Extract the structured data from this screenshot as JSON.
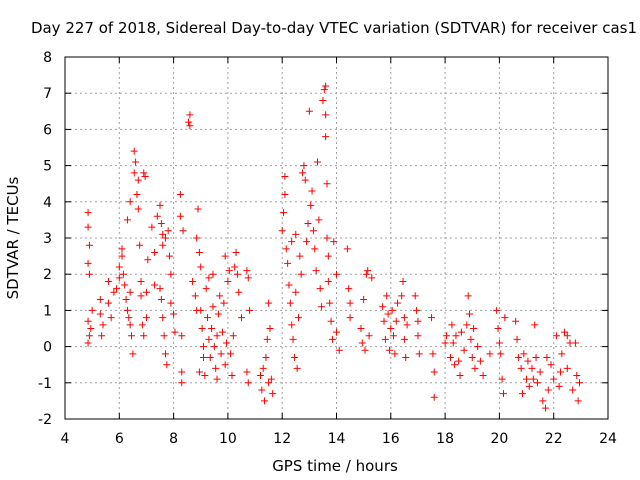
{
  "chart_data": {
    "type": "scatter",
    "title": "Day 227 of 2018, Sidereal Day-to-day VTEC variation (SDTVAR) for receiver cas1",
    "xlabel": "GPS time / hours",
    "ylabel": "SDTVAR / TECUs",
    "xlim": [
      4,
      24
    ],
    "ylim": [
      -2,
      8
    ],
    "x_ticks": [
      4,
      6,
      8,
      10,
      12,
      14,
      16,
      18,
      20,
      22,
      24
    ],
    "y_ticks": [
      -2,
      -1,
      0,
      1,
      2,
      3,
      4,
      5,
      6,
      7,
      8
    ],
    "grid": true,
    "marker": "plus",
    "marker_color": "#ff0000",
    "series": [
      {
        "name": "SDTVAR",
        "points": [
          [
            4.85,
            3.7
          ],
          [
            4.85,
            3.3
          ],
          [
            4.9,
            2.8
          ],
          [
            4.85,
            2.3
          ],
          [
            4.9,
            2.0
          ],
          [
            4.85,
            0.7
          ],
          [
            4.9,
            0.3
          ],
          [
            4.85,
            0.1
          ],
          [
            4.95,
            0.5
          ],
          [
            5.0,
            1.0
          ],
          [
            5.3,
            1.3
          ],
          [
            5.3,
            0.9
          ],
          [
            5.4,
            0.6
          ],
          [
            5.35,
            0.3
          ],
          [
            5.6,
            1.8
          ],
          [
            5.6,
            1.2
          ],
          [
            5.7,
            0.8
          ],
          [
            5.8,
            1.5
          ],
          [
            5.9,
            1.6
          ],
          [
            6.0,
            2.2
          ],
          [
            6.0,
            1.9
          ],
          [
            6.1,
            2.5
          ],
          [
            6.1,
            2.7
          ],
          [
            6.15,
            2.0
          ],
          [
            6.2,
            1.7
          ],
          [
            6.3,
            3.5
          ],
          [
            6.4,
            4.0
          ],
          [
            6.4,
            1.5
          ],
          [
            6.3,
            1.0
          ],
          [
            6.35,
            0.8
          ],
          [
            6.4,
            0.6
          ],
          [
            6.45,
            0.3
          ],
          [
            6.5,
            -0.2
          ],
          [
            6.55,
            5.4
          ],
          [
            6.6,
            5.1
          ],
          [
            6.55,
            4.8
          ],
          [
            6.65,
            4.2
          ],
          [
            6.7,
            4.6
          ],
          [
            6.7,
            3.8
          ],
          [
            6.75,
            2.8
          ],
          [
            6.8,
            1.8
          ],
          [
            6.8,
            1.4
          ],
          [
            6.85,
            0.6
          ],
          [
            6.9,
            0.3
          ],
          [
            6.9,
            4.8
          ],
          [
            6.95,
            4.7
          ],
          [
            7.0,
            1.5
          ],
          [
            7.0,
            0.8
          ],
          [
            7.2,
            3.3
          ],
          [
            7.3,
            2.6
          ],
          [
            7.3,
            1.7
          ],
          [
            7.4,
            3.6
          ],
          [
            7.5,
            3.9
          ],
          [
            7.55,
            3.4
          ],
          [
            7.6,
            3.1
          ],
          [
            7.6,
            2.8
          ],
          [
            7.5,
            1.6
          ],
          [
            7.55,
            1.3
          ],
          [
            7.6,
            0.8
          ],
          [
            7.65,
            0.3
          ],
          [
            7.7,
            -0.2
          ],
          [
            7.75,
            -0.5
          ],
          [
            7.7,
            3.0
          ],
          [
            7.8,
            3.2
          ],
          [
            7.85,
            2.5
          ],
          [
            7.9,
            2.0
          ],
          [
            7.9,
            1.2
          ],
          [
            8.0,
            0.9
          ],
          [
            8.05,
            0.4
          ],
          [
            8.25,
            4.2
          ],
          [
            8.25,
            3.6
          ],
          [
            8.35,
            3.2
          ],
          [
            8.3,
            0.3
          ],
          [
            8.3,
            -0.7
          ],
          [
            8.3,
            -1.0
          ],
          [
            8.55,
            6.2
          ],
          [
            8.6,
            6.1
          ],
          [
            8.6,
            6.4
          ],
          [
            8.7,
            1.8
          ],
          [
            8.8,
            1.4
          ],
          [
            8.85,
            1.0
          ],
          [
            8.85,
            3.0
          ],
          [
            8.9,
            3.8
          ],
          [
            8.95,
            2.6
          ],
          [
            9.0,
            2.2
          ],
          [
            9.0,
            1.0
          ],
          [
            9.05,
            0.5
          ],
          [
            9.1,
            0.0
          ],
          [
            9.1,
            -0.3
          ],
          [
            9.15,
            -0.8
          ],
          [
            9.2,
            1.6
          ],
          [
            9.25,
            0.8
          ],
          [
            9.3,
            0.2
          ],
          [
            9.35,
            -0.3
          ],
          [
            9.4,
            0.5
          ],
          [
            9.45,
            1.1
          ],
          [
            9.5,
            0.0
          ],
          [
            9.55,
            -0.6
          ],
          [
            9.6,
            0.3
          ],
          [
            9.65,
            0.9
          ],
          [
            9.7,
            1.4
          ],
          [
            9.75,
            -0.2
          ],
          [
            9.8,
            0.4
          ],
          [
            9.85,
            1.2
          ],
          [
            9.9,
            -0.5
          ],
          [
            9.95,
            0.1
          ],
          [
            10.0,
            1.8
          ],
          [
            10.05,
            2.1
          ],
          [
            10.1,
            -0.2
          ],
          [
            10.15,
            -0.8
          ],
          [
            10.2,
            0.3
          ],
          [
            10.25,
            2.2
          ],
          [
            10.3,
            2.6
          ],
          [
            10.35,
            2.0
          ],
          [
            10.4,
            1.5
          ],
          [
            10.5,
            0.8
          ],
          [
            10.7,
            2.1
          ],
          [
            10.75,
            1.9
          ],
          [
            10.7,
            -0.7
          ],
          [
            10.75,
            -1.0
          ],
          [
            10.8,
            1.0
          ],
          [
            11.2,
            -0.8
          ],
          [
            11.25,
            -1.2
          ],
          [
            11.3,
            -0.6
          ],
          [
            11.35,
            -1.5
          ],
          [
            11.4,
            -0.3
          ],
          [
            11.45,
            0.2
          ],
          [
            11.5,
            1.2
          ],
          [
            11.5,
            -1.0
          ],
          [
            11.55,
            0.5
          ],
          [
            11.6,
            -0.9
          ],
          [
            11.65,
            -1.3
          ],
          [
            12.0,
            3.2
          ],
          [
            12.05,
            3.7
          ],
          [
            12.1,
            4.2
          ],
          [
            12.1,
            4.7
          ],
          [
            12.15,
            2.7
          ],
          [
            12.2,
            2.3
          ],
          [
            12.25,
            1.7
          ],
          [
            12.3,
            1.2
          ],
          [
            12.35,
            0.6
          ],
          [
            12.4,
            0.2
          ],
          [
            12.45,
            -0.3
          ],
          [
            12.5,
            1.5
          ],
          [
            12.5,
            3.1
          ],
          [
            12.6,
            0.8
          ],
          [
            12.65,
            2.5
          ],
          [
            12.7,
            2.0
          ],
          [
            12.75,
            4.8
          ],
          [
            12.8,
            5.0
          ],
          [
            12.85,
            4.6
          ],
          [
            12.9,
            2.9
          ],
          [
            12.95,
            3.4
          ],
          [
            13.0,
            6.5
          ],
          [
            13.05,
            3.9
          ],
          [
            13.1,
            4.3
          ],
          [
            13.15,
            3.2
          ],
          [
            13.2,
            2.7
          ],
          [
            13.25,
            2.1
          ],
          [
            13.3,
            5.1
          ],
          [
            13.35,
            3.5
          ],
          [
            13.4,
            1.6
          ],
          [
            13.45,
            1.1
          ],
          [
            13.5,
            6.8
          ],
          [
            13.55,
            7.1
          ],
          [
            13.6,
            7.2
          ],
          [
            13.6,
            6.4
          ],
          [
            13.6,
            5.8
          ],
          [
            13.65,
            4.5
          ],
          [
            13.65,
            3.0
          ],
          [
            13.7,
            2.5
          ],
          [
            13.7,
            1.8
          ],
          [
            13.75,
            1.2
          ],
          [
            13.8,
            0.7
          ],
          [
            13.85,
            0.2
          ],
          [
            14.0,
            2.0
          ],
          [
            14.0,
            0.4
          ],
          [
            14.1,
            -0.1
          ],
          [
            14.4,
            2.7
          ],
          [
            14.45,
            1.6
          ],
          [
            14.5,
            1.2
          ],
          [
            14.5,
            0.8
          ],
          [
            14.9,
            0.5
          ],
          [
            14.95,
            0.1
          ],
          [
            15.0,
            1.3
          ],
          [
            15.05,
            -0.1
          ],
          [
            15.1,
            2.0
          ],
          [
            15.15,
            2.1
          ],
          [
            15.2,
            0.3
          ],
          [
            15.3,
            1.9
          ],
          [
            15.7,
            1.1
          ],
          [
            15.75,
            0.7
          ],
          [
            15.8,
            0.2
          ],
          [
            15.85,
            1.4
          ],
          [
            15.9,
            0.9
          ],
          [
            15.95,
            -0.1
          ],
          [
            16.0,
            0.5
          ],
          [
            16.05,
            1.0
          ],
          [
            16.1,
            0.3
          ],
          [
            16.15,
            -0.2
          ],
          [
            16.2,
            0.7
          ],
          [
            16.25,
            1.2
          ],
          [
            16.4,
            1.4
          ],
          [
            16.45,
            1.8
          ],
          [
            16.5,
            0.8
          ],
          [
            16.5,
            0.2
          ],
          [
            16.55,
            -0.3
          ],
          [
            16.6,
            0.6
          ],
          [
            16.9,
            1.4
          ],
          [
            16.95,
            1.0
          ],
          [
            17.0,
            0.7
          ],
          [
            17.0,
            0.3
          ],
          [
            17.05,
            -0.2
          ],
          [
            17.5,
            0.8
          ],
          [
            17.55,
            -0.2
          ],
          [
            17.6,
            -0.7
          ],
          [
            17.6,
            -1.4
          ],
          [
            18.0,
            0.1
          ],
          [
            18.05,
            0.3
          ],
          [
            18.2,
            -0.3
          ],
          [
            18.25,
            0.6
          ],
          [
            18.3,
            0.1
          ],
          [
            18.35,
            -0.5
          ],
          [
            18.4,
            0.3
          ],
          [
            18.5,
            -0.4
          ],
          [
            18.6,
            0.4
          ],
          [
            18.7,
            -0.1
          ],
          [
            18.8,
            0.6
          ],
          [
            18.85,
            1.4
          ],
          [
            18.9,
            0.9
          ],
          [
            18.95,
            0.2
          ],
          [
            19.0,
            -0.3
          ],
          [
            19.05,
            0.5
          ],
          [
            19.1,
            -0.6
          ],
          [
            19.2,
            0.0
          ],
          [
            19.3,
            -0.4
          ],
          [
            19.4,
            -0.8
          ],
          [
            19.9,
            1.0
          ],
          [
            19.95,
            0.5
          ],
          [
            20.0,
            0.1
          ],
          [
            20.05,
            -0.2
          ],
          [
            20.1,
            -0.9
          ],
          [
            20.15,
            -1.3
          ],
          [
            20.2,
            0.8
          ],
          [
            20.6,
            0.7
          ],
          [
            20.65,
            0.2
          ],
          [
            20.7,
            -0.3
          ],
          [
            20.8,
            -0.6
          ],
          [
            20.9,
            -0.2
          ],
          [
            21.0,
            -0.9
          ],
          [
            21.05,
            -0.4
          ],
          [
            21.1,
            -1.1
          ],
          [
            21.2,
            -0.6
          ],
          [
            21.3,
            0.6
          ],
          [
            21.35,
            -0.3
          ],
          [
            21.4,
            -1.0
          ],
          [
            21.5,
            -0.7
          ],
          [
            21.6,
            -1.5
          ],
          [
            21.7,
            -1.7
          ],
          [
            21.8,
            -1.2
          ],
          [
            21.9,
            -0.5
          ],
          [
            22.0,
            -0.9
          ],
          [
            22.1,
            0.3
          ],
          [
            22.2,
            -1.1
          ],
          [
            22.3,
            -0.2
          ],
          [
            22.4,
            0.4
          ],
          [
            22.5,
            -0.6
          ],
          [
            22.6,
            0.1
          ],
          [
            22.7,
            -1.2
          ],
          [
            22.8,
            0.1
          ],
          [
            22.85,
            -0.8
          ],
          [
            22.9,
            -1.5
          ],
          [
            22.95,
            -1.0
          ],
          [
            22.5,
            0.3
          ],
          [
            22.25,
            -0.7
          ],
          [
            21.75,
            -0.3
          ],
          [
            21.25,
            -0.9
          ],
          [
            20.85,
            -1.3
          ],
          [
            19.65,
            -0.2
          ],
          [
            18.55,
            -0.8
          ],
          [
            9.3,
            1.9
          ],
          [
            9.6,
            -0.9
          ],
          [
            9.9,
            2.5
          ],
          [
            9.45,
            2.0
          ],
          [
            8.95,
            -0.7
          ],
          [
            12.35,
            2.9
          ],
          [
            12.55,
            -0.6
          ],
          [
            6.25,
            1.3
          ],
          [
            7.05,
            2.4
          ],
          [
            13.9,
            2.9
          ]
        ]
      }
    ]
  }
}
